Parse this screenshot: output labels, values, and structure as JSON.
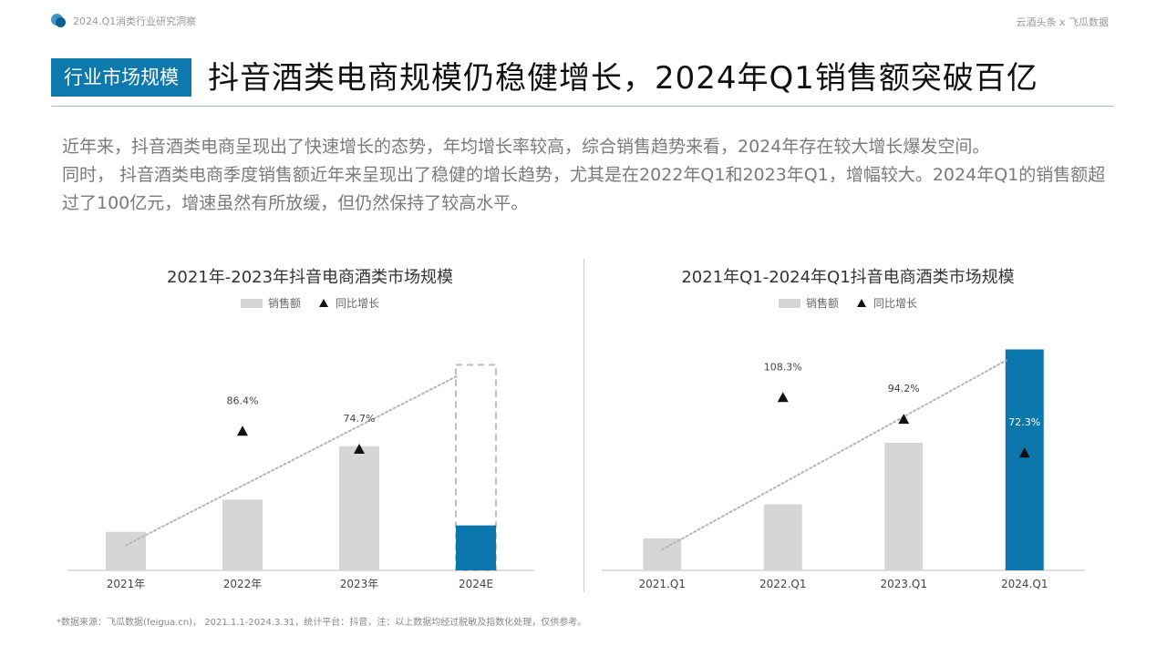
{
  "header": {
    "brand": "2024.Q1消类行业研究洞察",
    "partner": "云酒头条 x 飞瓜数据"
  },
  "section_badge": "行业市场规模",
  "title": "抖音酒类电商规模仍稳健增长，2024年Q1销售额突破百亿",
  "intro": [
    "近年来，抖音酒类电商呈现出了快速增长的态势，年均增长率较高，综合销售趋势来看，2024年存在较大增长爆发空间。",
    "同时， 抖音酒类电商季度销售额近年来呈现出了稳健的增长趋势，尤其是在2022年Q1和2023年Q1，增幅较大。2024年Q1的销售额超过了100亿元，增速虽然有所放缓，但仍然保持了较高水平。"
  ],
  "footnote": "*数据来源：飞瓜数据(feigua.cn)， 2021.1.1-2024.3.31，统计平台：抖音，注：以上数据均经过脱敏及指数化处理，仅供参考。",
  "colors": {
    "bar": "#d6d6d6",
    "highlight": "#0b77ad",
    "marker": "#111111",
    "trend": "#b5b5b5"
  },
  "chart_data": [
    {
      "type": "bar",
      "title": "2021年-2023年抖音电商酒类市场规模",
      "categories": [
        "2021年",
        "2022年",
        "2023年",
        "2024E"
      ],
      "series": [
        {
          "name": "销售额",
          "values": [
            18,
            33,
            58,
            21
          ]
        },
        {
          "name": "同比增长",
          "values": [
            null,
            86.4,
            74.7,
            null
          ],
          "labels": [
            "",
            "86.4%",
            "74.7%",
            ""
          ]
        }
      ],
      "estimate_outline": 96,
      "highlight_index": 3,
      "trendline": true,
      "legend": [
        "销售额",
        "同比增长"
      ]
    },
    {
      "type": "bar",
      "title": "2021年Q1-2024年Q1抖音电商酒类市场规模",
      "categories": [
        "2021.Q1",
        "2022.Q1",
        "2023.Q1",
        "2024.Q1"
      ],
      "series": [
        {
          "name": "销售额",
          "values": [
            14,
            29,
            56,
            97
          ]
        },
        {
          "name": "同比增长",
          "values": [
            null,
            108.3,
            94.2,
            72.3
          ],
          "labels": [
            "",
            "108.3%",
            "94.2%",
            "72.3%"
          ]
        }
      ],
      "highlight_index": 3,
      "trendline": true,
      "legend": [
        "销售额",
        "同比增长"
      ]
    }
  ]
}
